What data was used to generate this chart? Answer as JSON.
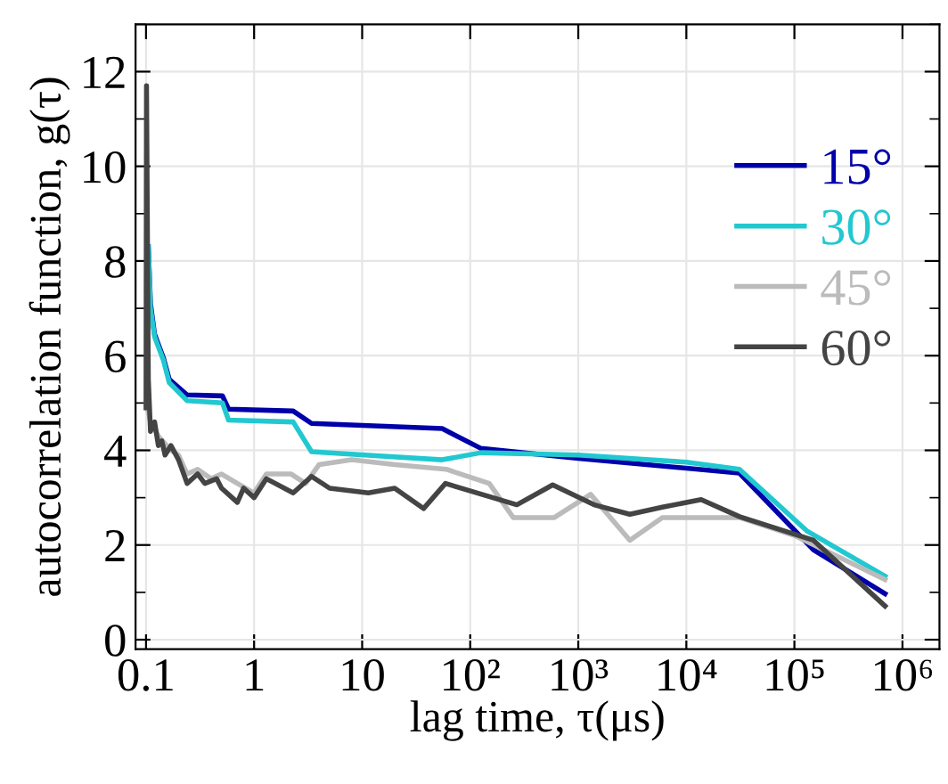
{
  "chart_data": {
    "type": "line",
    "xlabel": "lag time, τ(μs)",
    "ylabel": "autocorrelation function, g(τ)",
    "log": "x",
    "xlim": [
      0.08,
      2200000
    ],
    "ylim": [
      -0.2,
      13
    ],
    "xticks": [
      0.1,
      1,
      10,
      {
        "value": 100,
        "label": "10²"
      },
      {
        "value": 1000,
        "label": "10³"
      },
      {
        "value": 10000,
        "label": "10⁴"
      },
      {
        "value": 100000,
        "label": "10⁵"
      },
      {
        "value": 1000000,
        "label": "10⁶"
      }
    ],
    "yticks": [
      0,
      2,
      4,
      6,
      8,
      10,
      12
    ],
    "grid": true,
    "legend": "right",
    "line_style": "solid",
    "marker": "none",
    "series": [
      {
        "name": "15°",
        "color": "#0000aa",
        "x": [
          0.105,
          0.11,
          0.12,
          0.145,
          0.164,
          0.24,
          0.51,
          0.58,
          2.3,
          3.4,
          55,
          126,
          1000,
          31000,
          150000,
          690000
        ],
        "values": [
          8.3,
          7.1,
          6.45,
          5.95,
          5.5,
          5.17,
          5.15,
          4.87,
          4.83,
          4.57,
          4.46,
          4.04,
          3.83,
          3.52,
          1.9,
          0.97
        ]
      },
      {
        "name": "30°",
        "color": "#22c8d0",
        "x": [
          0.105,
          0.11,
          0.12,
          0.145,
          0.164,
          0.24,
          0.51,
          0.58,
          2.3,
          3.4,
          55,
          126,
          1000,
          10000,
          31000,
          130000,
          690000
        ],
        "values": [
          8.3,
          7.0,
          6.4,
          5.9,
          5.43,
          5.05,
          5.0,
          4.64,
          4.6,
          3.97,
          3.8,
          3.95,
          3.9,
          3.75,
          3.6,
          2.3,
          1.34
        ]
      },
      {
        "name": "45°",
        "color": "#bbbbbb",
        "x": [
          0.1,
          0.11,
          0.13,
          0.17,
          0.2,
          0.24,
          0.3,
          0.4,
          0.5,
          0.7,
          1,
          1.3,
          2.2,
          3,
          4,
          8,
          20,
          60,
          150,
          250,
          600,
          1300,
          3000,
          6000,
          31000,
          100000,
          690000
        ],
        "values": [
          5.0,
          4.6,
          4.3,
          4.0,
          3.9,
          3.5,
          3.6,
          3.4,
          3.5,
          3.3,
          3.1,
          3.5,
          3.5,
          3.3,
          3.7,
          3.8,
          3.7,
          3.6,
          3.3,
          2.58,
          2.58,
          3.07,
          2.1,
          2.58,
          2.58,
          2.2,
          1.27
        ]
      },
      {
        "name": "60°",
        "color": "#444444",
        "x": [
          0.1,
          0.101,
          0.105,
          0.11,
          0.12,
          0.13,
          0.14,
          0.15,
          0.17,
          0.2,
          0.24,
          0.3,
          0.35,
          0.45,
          0.5,
          0.7,
          0.8,
          1,
          1.3,
          2.3,
          3.4,
          5,
          11.4,
          20,
          37,
          59,
          270,
          580,
          1400,
          3000,
          6000,
          13700,
          31000,
          150000,
          690000
        ],
        "values": [
          4.9,
          11.7,
          5.5,
          4.4,
          4.6,
          4.1,
          4.2,
          3.9,
          4.1,
          3.8,
          3.3,
          3.5,
          3.3,
          3.4,
          3.2,
          2.9,
          3.2,
          3.0,
          3.4,
          3.1,
          3.45,
          3.2,
          3.1,
          3.2,
          2.77,
          3.3,
          2.85,
          3.27,
          2.85,
          2.65,
          2.8,
          2.96,
          2.6,
          2.1,
          0.71
        ]
      }
    ]
  }
}
